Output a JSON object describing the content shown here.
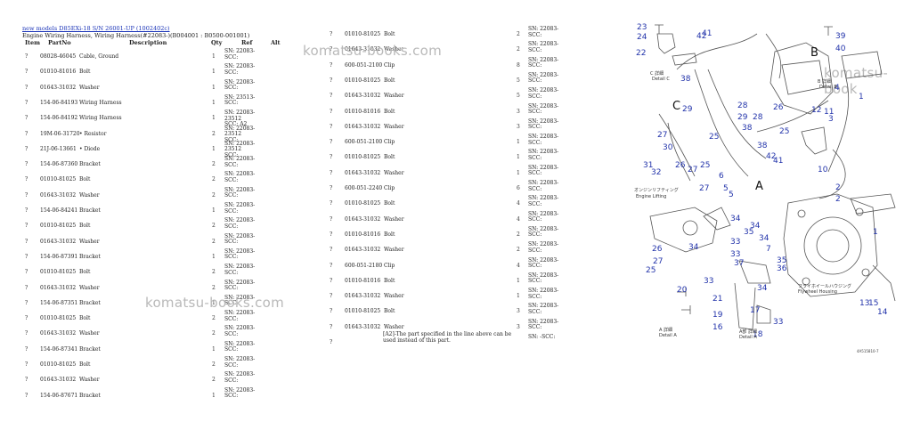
{
  "header": {
    "link": "new models D85EXi-18 S/N 26001-UP (1002402c)",
    "title": "Engine Wiring Harness, Wiring Harness(#22083-)(B004001 : B0500-001001)"
  },
  "columns": {
    "item": "Item",
    "partno": "PartNo",
    "description": "Description",
    "qty": "Qty",
    "ref": "Ref",
    "alt": "Alt"
  },
  "left_rows": [
    {
      "item": "?",
      "partno": "08028-46045",
      "desc": "Cable, Ground",
      "qty": "1",
      "ref": "SN: 22083-SCC:"
    },
    {
      "item": "?",
      "partno": "01010-81016",
      "desc": "Bolt",
      "qty": "1",
      "ref": "SN: 22083-SCC:"
    },
    {
      "item": "?",
      "partno": "01643-31032",
      "desc": "Washer",
      "qty": "1",
      "ref": "SN: 22083-SCC:"
    },
    {
      "item": "?",
      "partno": "154-06-84193",
      "desc": "Wiring Harness",
      "qty": "1",
      "ref": "SN: 23513-SCC:"
    },
    {
      "item": "?",
      "partno": "154-06-84192",
      "desc": "Wiring Harness",
      "qty": "1",
      "ref": "SN: 22083-23512 SCC: A2"
    },
    {
      "item": "?",
      "partno": "19M-06-31720",
      "desc": "• Resistor",
      "qty": "2",
      "ref": "SN: 22083-23512 SCC:"
    },
    {
      "item": "?",
      "partno": "21J-06-13661",
      "desc": "• Diode",
      "qty": "1",
      "ref": "SN: 22083-23512 SCC:"
    },
    {
      "item": "?",
      "partno": "154-06-87360",
      "desc": "Bracket",
      "qty": "2",
      "ref": "SN: 22083-SCC:"
    },
    {
      "item": "?",
      "partno": "01010-81025",
      "desc": "Bolt",
      "qty": "2",
      "ref": "SN: 22083-SCC:"
    },
    {
      "item": "?",
      "partno": "01643-31032",
      "desc": "Washer",
      "qty": "2",
      "ref": "SN: 22083-SCC:"
    },
    {
      "item": "?",
      "partno": "154-06-84241",
      "desc": "Bracket",
      "qty": "1",
      "ref": "SN: 22083-SCC:"
    },
    {
      "item": "?",
      "partno": "01010-81025",
      "desc": "Bolt",
      "qty": "2",
      "ref": "SN: 22083-SCC:"
    },
    {
      "item": "?",
      "partno": "01643-31032",
      "desc": "Washer",
      "qty": "2",
      "ref": "SN: 22083-SCC:"
    },
    {
      "item": "?",
      "partno": "154-06-87391",
      "desc": "Bracket",
      "qty": "1",
      "ref": "SN: 22083-SCC:"
    },
    {
      "item": "?",
      "partno": "01010-81025",
      "desc": "Bolt",
      "qty": "2",
      "ref": "SN: 22083-SCC:"
    },
    {
      "item": "?",
      "partno": "01643-31032",
      "desc": "Washer",
      "qty": "2",
      "ref": "SN: 22083-SCC:"
    },
    {
      "item": "?",
      "partno": "154-06-87351",
      "desc": "Bracket",
      "qty": "1",
      "ref": "SN: 22083-SCC:"
    },
    {
      "item": "?",
      "partno": "01010-81025",
      "desc": "Bolt",
      "qty": "2",
      "ref": "SN: 22083-SCC:"
    },
    {
      "item": "?",
      "partno": "01643-31032",
      "desc": "Washer",
      "qty": "2",
      "ref": "SN: 22083-SCC:"
    },
    {
      "item": "?",
      "partno": "154-06-87341",
      "desc": "Bracket",
      "qty": "1",
      "ref": "SN: 22083-SCC:"
    },
    {
      "item": "?",
      "partno": "01010-81025",
      "desc": "Bolt",
      "qty": "2",
      "ref": "SN: 22083-SCC:"
    },
    {
      "item": "?",
      "partno": "01643-31032",
      "desc": "Washer",
      "qty": "2",
      "ref": "SN: 22083-SCC:"
    },
    {
      "item": "?",
      "partno": "154-06-87671",
      "desc": "Bracket",
      "qty": "1",
      "ref": "SN: 22083-SCC:"
    }
  ],
  "right_rows": [
    {
      "item": "?",
      "partno": "01010-81025",
      "desc": "Bolt",
      "qty": "2",
      "ref": "SN: 22083-SCC:"
    },
    {
      "item": "?",
      "partno": "01643-31032",
      "desc": "Washer",
      "qty": "2",
      "ref": "SN: 22083-SCC:"
    },
    {
      "item": "?",
      "partno": "600-051-2100",
      "desc": "Clip",
      "qty": "8",
      "ref": "SN: 22083-SCC:"
    },
    {
      "item": "?",
      "partno": "01010-81025",
      "desc": "Bolt",
      "qty": "5",
      "ref": "SN: 22083-SCC:"
    },
    {
      "item": "?",
      "partno": "01643-31032",
      "desc": "Washer",
      "qty": "5",
      "ref": "SN: 22083-SCC:"
    },
    {
      "item": "?",
      "partno": "01010-81016",
      "desc": "Bolt",
      "qty": "3",
      "ref": "SN: 22083-SCC:"
    },
    {
      "item": "?",
      "partno": "01643-31032",
      "desc": "Washer",
      "qty": "3",
      "ref": "SN: 22083-SCC:"
    },
    {
      "item": "?",
      "partno": "600-051-2100",
      "desc": "Clip",
      "qty": "1",
      "ref": "SN: 22083-SCC:"
    },
    {
      "item": "?",
      "partno": "01010-81025",
      "desc": "Bolt",
      "qty": "1",
      "ref": "SN: 22083-SCC:"
    },
    {
      "item": "?",
      "partno": "01643-31032",
      "desc": "Washer",
      "qty": "1",
      "ref": "SN: 22083-SCC:"
    },
    {
      "item": "?",
      "partno": "600-051-2240",
      "desc": "Clip",
      "qty": "6",
      "ref": "SN: 22083-SCC:"
    },
    {
      "item": "?",
      "partno": "01010-81025",
      "desc": "Bolt",
      "qty": "4",
      "ref": "SN: 22083-SCC:"
    },
    {
      "item": "?",
      "partno": "01643-31032",
      "desc": "Washer",
      "qty": "4",
      "ref": "SN: 22083-SCC:"
    },
    {
      "item": "?",
      "partno": "01010-81016",
      "desc": "Bolt",
      "qty": "2",
      "ref": "SN: 22083-SCC:"
    },
    {
      "item": "?",
      "partno": "01643-31032",
      "desc": "Washer",
      "qty": "2",
      "ref": "SN: 22083-SCC:"
    },
    {
      "item": "?",
      "partno": "600-051-2180",
      "desc": "Clip",
      "qty": "4",
      "ref": "SN: 22083-SCC:"
    },
    {
      "item": "?",
      "partno": "01010-81016",
      "desc": "Bolt",
      "qty": "1",
      "ref": "SN: 22083-SCC:"
    },
    {
      "item": "?",
      "partno": "01643-31032",
      "desc": "Washer",
      "qty": "1",
      "ref": "SN: 22083-SCC:"
    },
    {
      "item": "?",
      "partno": "01010-81025",
      "desc": "Bolt",
      "qty": "3",
      "ref": "SN: 22083-SCC:"
    },
    {
      "item": "?",
      "partno": "01643-31032",
      "desc": "Washer",
      "qty": "3",
      "ref": "SN: 22083-SCC:"
    },
    {
      "item": "?",
      "partno": "",
      "desc": "",
      "qty": "",
      "ref": "SN: -SCC:"
    }
  ],
  "note": "[A2]-The part specified in the line above can be used instead of this part.",
  "watermarks": [
    "komatsu-books.com",
    "komatsu-books.com",
    "komatsu-book"
  ],
  "diagram": {
    "numbers": [
      "23",
      "24",
      "22",
      "42",
      "41",
      "38",
      "39",
      "40",
      "B",
      "4",
      "3",
      "1",
      "11",
      "12",
      "C",
      "29",
      "28",
      "29",
      "28",
      "38",
      "26",
      "27",
      "30",
      "25",
      "38",
      "25",
      "31",
      "32",
      "26",
      "27",
      "25",
      "6",
      "27",
      "5",
      "5",
      "42",
      "41",
      "10",
      "2",
      "2",
      "A",
      "34",
      "33",
      "35",
      "34",
      "34",
      "33",
      "7",
      "1",
      "26",
      "27",
      "25",
      "34",
      "37",
      "35",
      "36",
      "33",
      "34",
      "20",
      "21",
      "19",
      "16",
      "18",
      "33",
      "17",
      "13",
      "15",
      "14"
    ],
    "texts": [
      "C 詳細",
      "Detail C",
      "オンジンリフティング",
      "Engine Lifting",
      "B 詳細",
      "Detail B",
      "フライホイールハウジング",
      "Flywheel Housing",
      "A 詳細",
      "Detail A",
      "A部 詳細",
      "Detail A"
    ],
    "fig_code": "4A515810-7"
  }
}
